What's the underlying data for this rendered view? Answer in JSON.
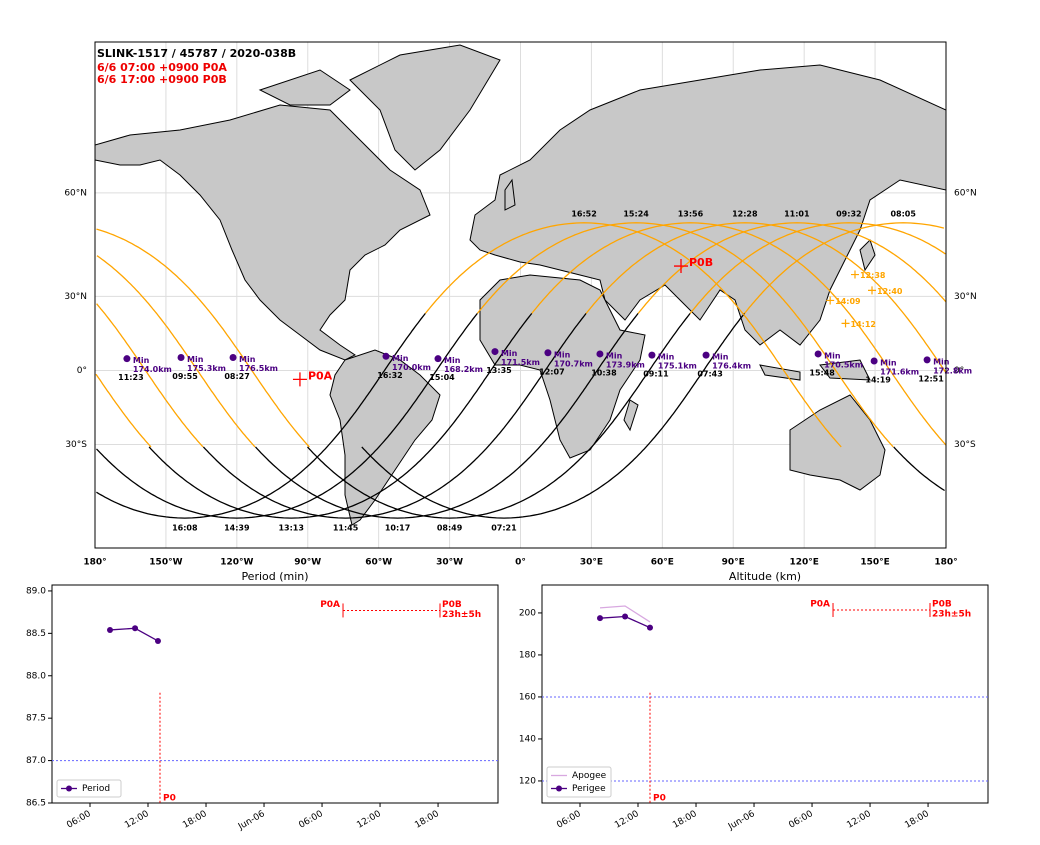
{
  "map": {
    "title": "SLINK-1517 / 45787 / 2020-038B",
    "subtitles": [
      "6/6 07:00 +0900 P0A",
      "6/6 17:00 +0900 P0B"
    ],
    "lonlim": [
      -180,
      180
    ],
    "latlim": [
      -60,
      80
    ],
    "xticks": [
      {
        "value": -180,
        "label": "180°"
      },
      {
        "value": -150,
        "label": "150°W"
      },
      {
        "value": -120,
        "label": "120°W"
      },
      {
        "value": -90,
        "label": "90°W"
      },
      {
        "value": -60,
        "label": "60°W"
      },
      {
        "value": -30,
        "label": "30°W"
      },
      {
        "value": 0,
        "label": "0°"
      },
      {
        "value": 30,
        "label": "30°E"
      },
      {
        "value": 60,
        "label": "60°E"
      },
      {
        "value": 90,
        "label": "90°E"
      },
      {
        "value": 120,
        "label": "120°E"
      },
      {
        "value": 150,
        "label": "150°E"
      },
      {
        "value": 180,
        "label": "180°"
      }
    ],
    "yticks": [
      {
        "value": 60,
        "label": "60°N"
      },
      {
        "value": 30,
        "label": "30°N"
      },
      {
        "value": 0,
        "label": "0°"
      },
      {
        "value": -30,
        "label": "30°S"
      }
    ],
    "grid": true,
    "inclination": 53,
    "track_segments": [
      {
        "color": "#000000",
        "from": 220,
        "to": 390
      },
      {
        "color": "#ffa500",
        "from": 390,
        "to": 580
      }
    ],
    "passes": [
      {
        "south_lon": -7,
        "south_time": "07:21",
        "peak_time": "08:05"
      },
      {
        "south_lon": -30,
        "south_time": "08:49",
        "peak_time": "09:32"
      },
      {
        "south_lon": -52,
        "south_time": "10:17",
        "peak_time": "11:01"
      },
      {
        "south_lon": -74,
        "south_time": "11:45",
        "peak_time": "12:28"
      },
      {
        "south_lon": -97,
        "south_time": "13:13",
        "peak_time": "13:56"
      },
      {
        "south_lon": -120,
        "south_time": "14:39",
        "peak_time": "15:24"
      },
      {
        "south_lon": -142,
        "south_time": "16:08",
        "peak_time": "16:52"
      }
    ],
    "min_label": "Min",
    "min_color": "#4b0082",
    "minima": [
      {
        "lon": -166.5,
        "lat": 5,
        "time": "11:23",
        "alt": 174.0,
        "alt_label": "174.0km"
      },
      {
        "lon": -143.6,
        "lat": 5.5,
        "time": "09:55",
        "alt": 175.3,
        "alt_label": "175.3km"
      },
      {
        "lon": -121.6,
        "lat": 5.5,
        "time": "08:27",
        "alt": 176.5,
        "alt_label": "176.5km"
      },
      {
        "lon": -56.9,
        "lat": 6,
        "time": "16:32",
        "alt": 170.0,
        "alt_label": "170.0km"
      },
      {
        "lon": -34.9,
        "lat": 5,
        "time": "15:04",
        "alt": 168.2,
        "alt_label": "168.2km"
      },
      {
        "lon": -10.8,
        "lat": 8,
        "time": "13:35",
        "alt": 171.5,
        "alt_label": "171.5km"
      },
      {
        "lon": 11.6,
        "lat": 7.5,
        "time": "12:07",
        "alt": 170.7,
        "alt_label": "170.7km"
      },
      {
        "lon": 33.6,
        "lat": 7,
        "time": "10:38",
        "alt": 173.9,
        "alt_label": "173.9km"
      },
      {
        "lon": 55.6,
        "lat": 6.5,
        "time": "09:11",
        "alt": 175.1,
        "alt_label": "175.1km"
      },
      {
        "lon": 78.5,
        "lat": 6.5,
        "time": "07:43",
        "alt": 176.4,
        "alt_label": "176.4km"
      },
      {
        "lon": 125.9,
        "lat": 7,
        "time": "15:48",
        "alt": 170.5,
        "alt_label": "170.5km"
      },
      {
        "lon": 149.6,
        "lat": 4,
        "time": "14:19",
        "alt": 171.6,
        "alt_label": "171.6km"
      },
      {
        "lon": 172,
        "lat": 4.5,
        "time": "12:51",
        "alt": 172.8,
        "alt_label": "172.8km"
      }
    ],
    "mark_color": "#ffa500",
    "marks": [
      {
        "lon": 141.5,
        "lat": 37.7,
        "time": "12:38"
      },
      {
        "lon": 148.7,
        "lat": 32.2,
        "time": "12:40"
      },
      {
        "lon": 131,
        "lat": 28.5,
        "time": "14:09"
      },
      {
        "lon": 137.5,
        "lat": 19.6,
        "time": "14:12"
      }
    ],
    "target_color": "#ff0000",
    "targets": [
      {
        "name": "P0A",
        "lon": -93.3,
        "lat": -3.8
      },
      {
        "name": "P0B",
        "lon": 67.9,
        "lat": 40.5
      }
    ]
  },
  "chart_data": [
    {
      "type": "line",
      "title": "Period (min)",
      "x": [
        8.07,
        10.66,
        13.03
      ],
      "series": [
        {
          "name": "Period",
          "color": "#4b0082",
          "marker": true,
          "values": [
            88.54,
            88.56,
            88.41
          ]
        }
      ],
      "xlim": [
        2.07,
        48.2
      ],
      "xticks": [
        {
          "value": 6,
          "label": "06:00"
        },
        {
          "value": 12,
          "label": "12:00"
        },
        {
          "value": 18,
          "label": "18:00"
        },
        {
          "value": 24,
          "label": "Jun-06"
        },
        {
          "value": 30,
          "label": "06:00"
        },
        {
          "value": 36,
          "label": "12:00"
        },
        {
          "value": 42,
          "label": "18:00"
        }
      ],
      "ylim": [
        86.5,
        89.07
      ],
      "yticks": [
        86.5,
        {
          "value": 87,
          "label": "87.0"
        },
        87.5,
        {
          "value": 88,
          "label": "88.0"
        },
        88.5,
        {
          "value": 89,
          "label": "89.0"
        }
      ],
      "hlines": [
        {
          "value": 87,
          "color": "#6666ff"
        }
      ],
      "p0": {
        "label": "P0",
        "x": 13.24,
        "top": 87.8,
        "color": "#ff0000"
      },
      "window": {
        "x": [
          32.17,
          42.2
        ],
        "y": 88.77,
        "labels": [
          "P0A",
          "P0B",
          "23h±5h"
        ]
      },
      "legend": "lower left"
    },
    {
      "type": "line",
      "title": "Altitude (km)",
      "x": [
        8.07,
        10.66,
        13.24
      ],
      "series": [
        {
          "name": "Apogee",
          "color": "#d8a8e0",
          "marker": false,
          "values": [
            202.4,
            203.3,
            195.7
          ]
        },
        {
          "name": "Perigee",
          "color": "#4b0082",
          "marker": true,
          "values": [
            197.5,
            198.3,
            193.0
          ]
        }
      ],
      "xlim": [
        2.07,
        48.2
      ],
      "xticks": [
        {
          "value": 6,
          "label": "06:00"
        },
        {
          "value": 12,
          "label": "12:00"
        },
        {
          "value": 18,
          "label": "18:00"
        },
        {
          "value": 24,
          "label": "Jun-06"
        },
        {
          "value": 30,
          "label": "06:00"
        },
        {
          "value": 36,
          "label": "12:00"
        },
        {
          "value": 42,
          "label": "18:00"
        }
      ],
      "ylim": [
        109.5,
        213.3
      ],
      "yticks": [
        120,
        140,
        160,
        180,
        200
      ],
      "hlines": [
        {
          "value": 160,
          "color": "#6666ff"
        },
        {
          "value": 120,
          "color": "#6666ff"
        }
      ],
      "p0": {
        "label": "P0",
        "x": 13.24,
        "top": 162,
        "color": "#ff0000"
      },
      "window": {
        "x": [
          32.17,
          42.2
        ],
        "y": 201.4,
        "labels": [
          "P0A",
          "P0B",
          "23h±5h"
        ]
      },
      "legend": "lower left"
    }
  ]
}
